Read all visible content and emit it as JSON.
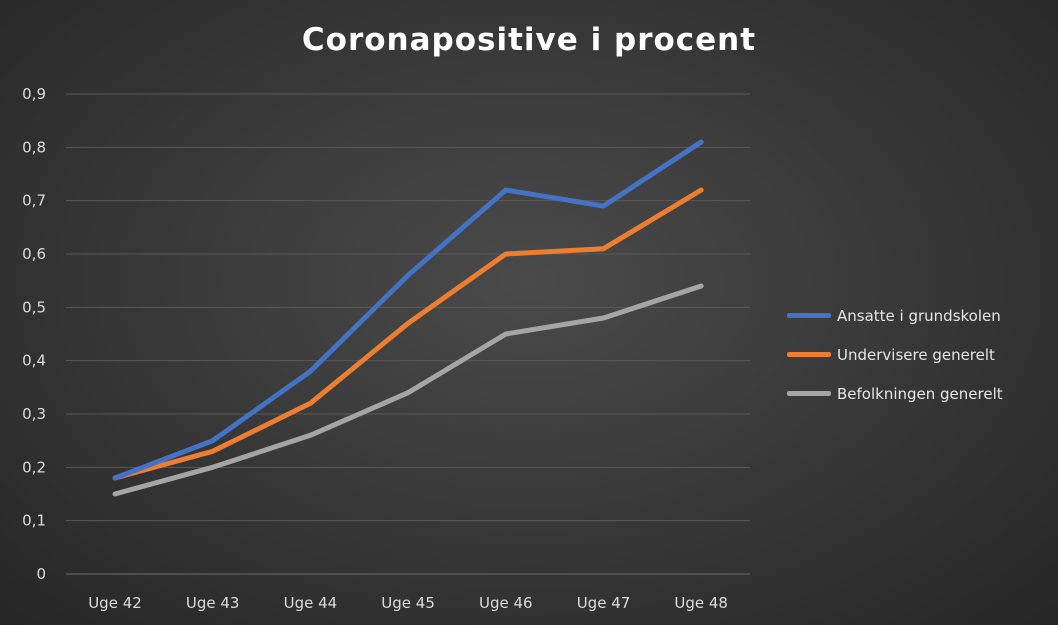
{
  "chart_data": {
    "type": "line",
    "title": "Coronapositive i procent",
    "xlabel": "",
    "ylabel": "",
    "categories": [
      "Uge 42",
      "Uge 43",
      "Uge 44",
      "Uge 45",
      "Uge 46",
      "Uge 47",
      "Uge 48"
    ],
    "ylim": [
      0,
      0.9
    ],
    "yticks": [
      0,
      0.1,
      0.2,
      0.3,
      0.4,
      0.5,
      0.6,
      0.7,
      0.8,
      0.9
    ],
    "ytick_labels": [
      "0",
      "0,1",
      "0,2",
      "0,3",
      "0,4",
      "0,5",
      "0,6",
      "0,7",
      "0,8",
      "0,9"
    ],
    "grid": true,
    "legend_position": "right",
    "series": [
      {
        "name": "Ansatte i grundskolen",
        "color": "#4472c4",
        "values": [
          0.18,
          0.25,
          0.38,
          0.56,
          0.72,
          0.69,
          0.81
        ]
      },
      {
        "name": "Undervisere generelt",
        "color": "#ed7d31",
        "values": [
          0.18,
          0.23,
          0.32,
          0.47,
          0.6,
          0.61,
          0.72
        ]
      },
      {
        "name": "Befolkningen generelt",
        "color": "#a5a5a5",
        "values": [
          0.15,
          0.2,
          0.26,
          0.34,
          0.45,
          0.48,
          0.54
        ]
      }
    ]
  }
}
